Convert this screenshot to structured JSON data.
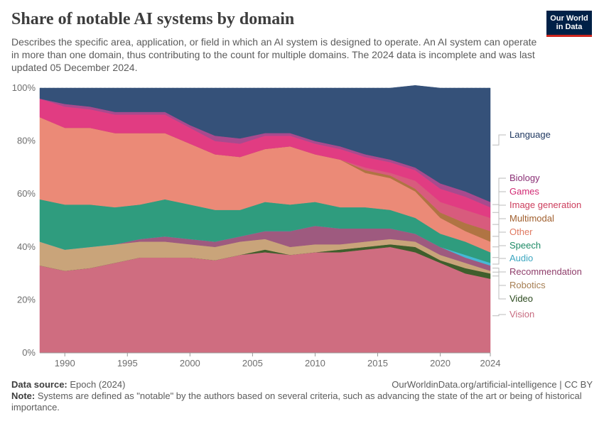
{
  "header": {
    "title": "Share of notable AI systems by domain",
    "subtitle": "Describes the specific area, application, or field in which an AI system is designed to operate. An AI system can operate in more than one domain, thus contributing to the count for multiple domains. The 2024 data is incomplete and was last updated 05 December 2024.",
    "logo_line1": "Our World",
    "logo_line2": "in Data"
  },
  "footer": {
    "source_label": "Data source:",
    "source_value": "Epoch (2024)",
    "url": "OurWorldinData.org/artificial-intelligence | CC BY",
    "note_label": "Note:",
    "note_value": "Systems are defined as \"notable\" by the authors based on several criteria, such as advancing the state of the art or being of historical importance."
  },
  "colors": {
    "Vision": "#cf6d80",
    "Video": "#3f5e2c",
    "Robotics": "#c9a47a",
    "Recommendation": "#9e5a7f",
    "Audio": "#45b9d6",
    "Speech": "#2f9c7e",
    "Other": "#eb8a77",
    "Multimodal": "#b07443",
    "Image generation": "#d85b7d",
    "Games": "#e13c82",
    "Biology": "#a84a8e",
    "Language": "#355179"
  },
  "label_colors": {
    "Vision": "#c76b80",
    "Video": "#2c4a1e",
    "Robotics": "#a67e52",
    "Recommendation": "#8f3e6b",
    "Audio": "#3ca6c0",
    "Speech": "#1e8a66",
    "Other": "#e07a62",
    "Multimodal": "#a05f2e",
    "Image generation": "#cc3d5c",
    "Games": "#d22a74",
    "Biology": "#8a2f75",
    "Language": "#1c355e"
  },
  "chart_data": {
    "type": "area",
    "stacked": true,
    "title": "Share of notable AI systems by domain",
    "x": [
      1988,
      1990,
      1992,
      1994,
      1996,
      1998,
      2000,
      2002,
      2004,
      2006,
      2008,
      2010,
      2012,
      2014,
      2016,
      2018,
      2020,
      2022,
      2024
    ],
    "x_ticks": [
      "1990",
      "1995",
      "2000",
      "2005",
      "2010",
      "2015",
      "2020",
      "2024"
    ],
    "x_tick_values": [
      1990,
      1995,
      2000,
      2005,
      2010,
      2015,
      2020,
      2024
    ],
    "y_ticks": [
      "0%",
      "20%",
      "40%",
      "60%",
      "80%",
      "100%"
    ],
    "y_tick_values": [
      0,
      20,
      40,
      60,
      80,
      100
    ],
    "ylim": [
      0,
      100
    ],
    "xlim": [
      1988,
      2024
    ],
    "series": [
      {
        "name": "Vision",
        "values": [
          33,
          31,
          32,
          34,
          36,
          36,
          36,
          35,
          37,
          38,
          37,
          38,
          38,
          39,
          40,
          38,
          34,
          30,
          28
        ]
      },
      {
        "name": "Video",
        "values": [
          0,
          0,
          0,
          0,
          0,
          0,
          0,
          0,
          0,
          1,
          0,
          0,
          1,
          1,
          1,
          2,
          1,
          2,
          2
        ]
      },
      {
        "name": "Robotics",
        "values": [
          9,
          8,
          8,
          7,
          6,
          6,
          5,
          5,
          5,
          4,
          3,
          3,
          2,
          2,
          2,
          2,
          2,
          2,
          1
        ]
      },
      {
        "name": "Recommendation",
        "values": [
          0,
          0,
          0,
          0,
          1,
          2,
          2,
          2,
          2,
          3,
          6,
          7,
          6,
          5,
          4,
          3,
          3,
          2,
          2
        ]
      },
      {
        "name": "Audio",
        "values": [
          0,
          0,
          0,
          0,
          0,
          0,
          0,
          0,
          0,
          0,
          0,
          0,
          0,
          0,
          0,
          0,
          0,
          1,
          1
        ]
      },
      {
        "name": "Speech",
        "values": [
          16,
          17,
          16,
          14,
          13,
          14,
          13,
          12,
          10,
          11,
          10,
          9,
          8,
          8,
          7,
          6,
          5,
          5,
          4
        ]
      },
      {
        "name": "Other",
        "values": [
          31,
          29,
          29,
          28,
          27,
          25,
          23,
          21,
          20,
          20,
          22,
          18,
          18,
          13,
          12,
          10,
          6,
          4,
          4
        ]
      },
      {
        "name": "Multimodal",
        "values": [
          0,
          0,
          0,
          0,
          0,
          0,
          0,
          0,
          0,
          0,
          0,
          0,
          0,
          1,
          1,
          1,
          2,
          3,
          4
        ]
      },
      {
        "name": "Image generation",
        "values": [
          0,
          0,
          0,
          0,
          0,
          0,
          0,
          0,
          0,
          0,
          0,
          0,
          0,
          1,
          1,
          3,
          4,
          5,
          5
        ]
      },
      {
        "name": "Games",
        "values": [
          7,
          8,
          7,
          7,
          7,
          7,
          6,
          5,
          5,
          5,
          4,
          4,
          4,
          4,
          4,
          4,
          5,
          5,
          4
        ]
      },
      {
        "name": "Biology",
        "values": [
          0,
          1,
          1,
          1,
          1,
          1,
          1,
          2,
          2,
          1,
          1,
          1,
          1,
          1,
          1,
          1,
          2,
          2,
          2
        ]
      },
      {
        "name": "Language",
        "values": [
          4,
          6,
          7,
          9,
          9,
          9,
          14,
          18,
          19,
          17,
          17,
          20,
          22,
          25,
          27,
          31,
          36,
          39,
          43
        ]
      }
    ]
  }
}
